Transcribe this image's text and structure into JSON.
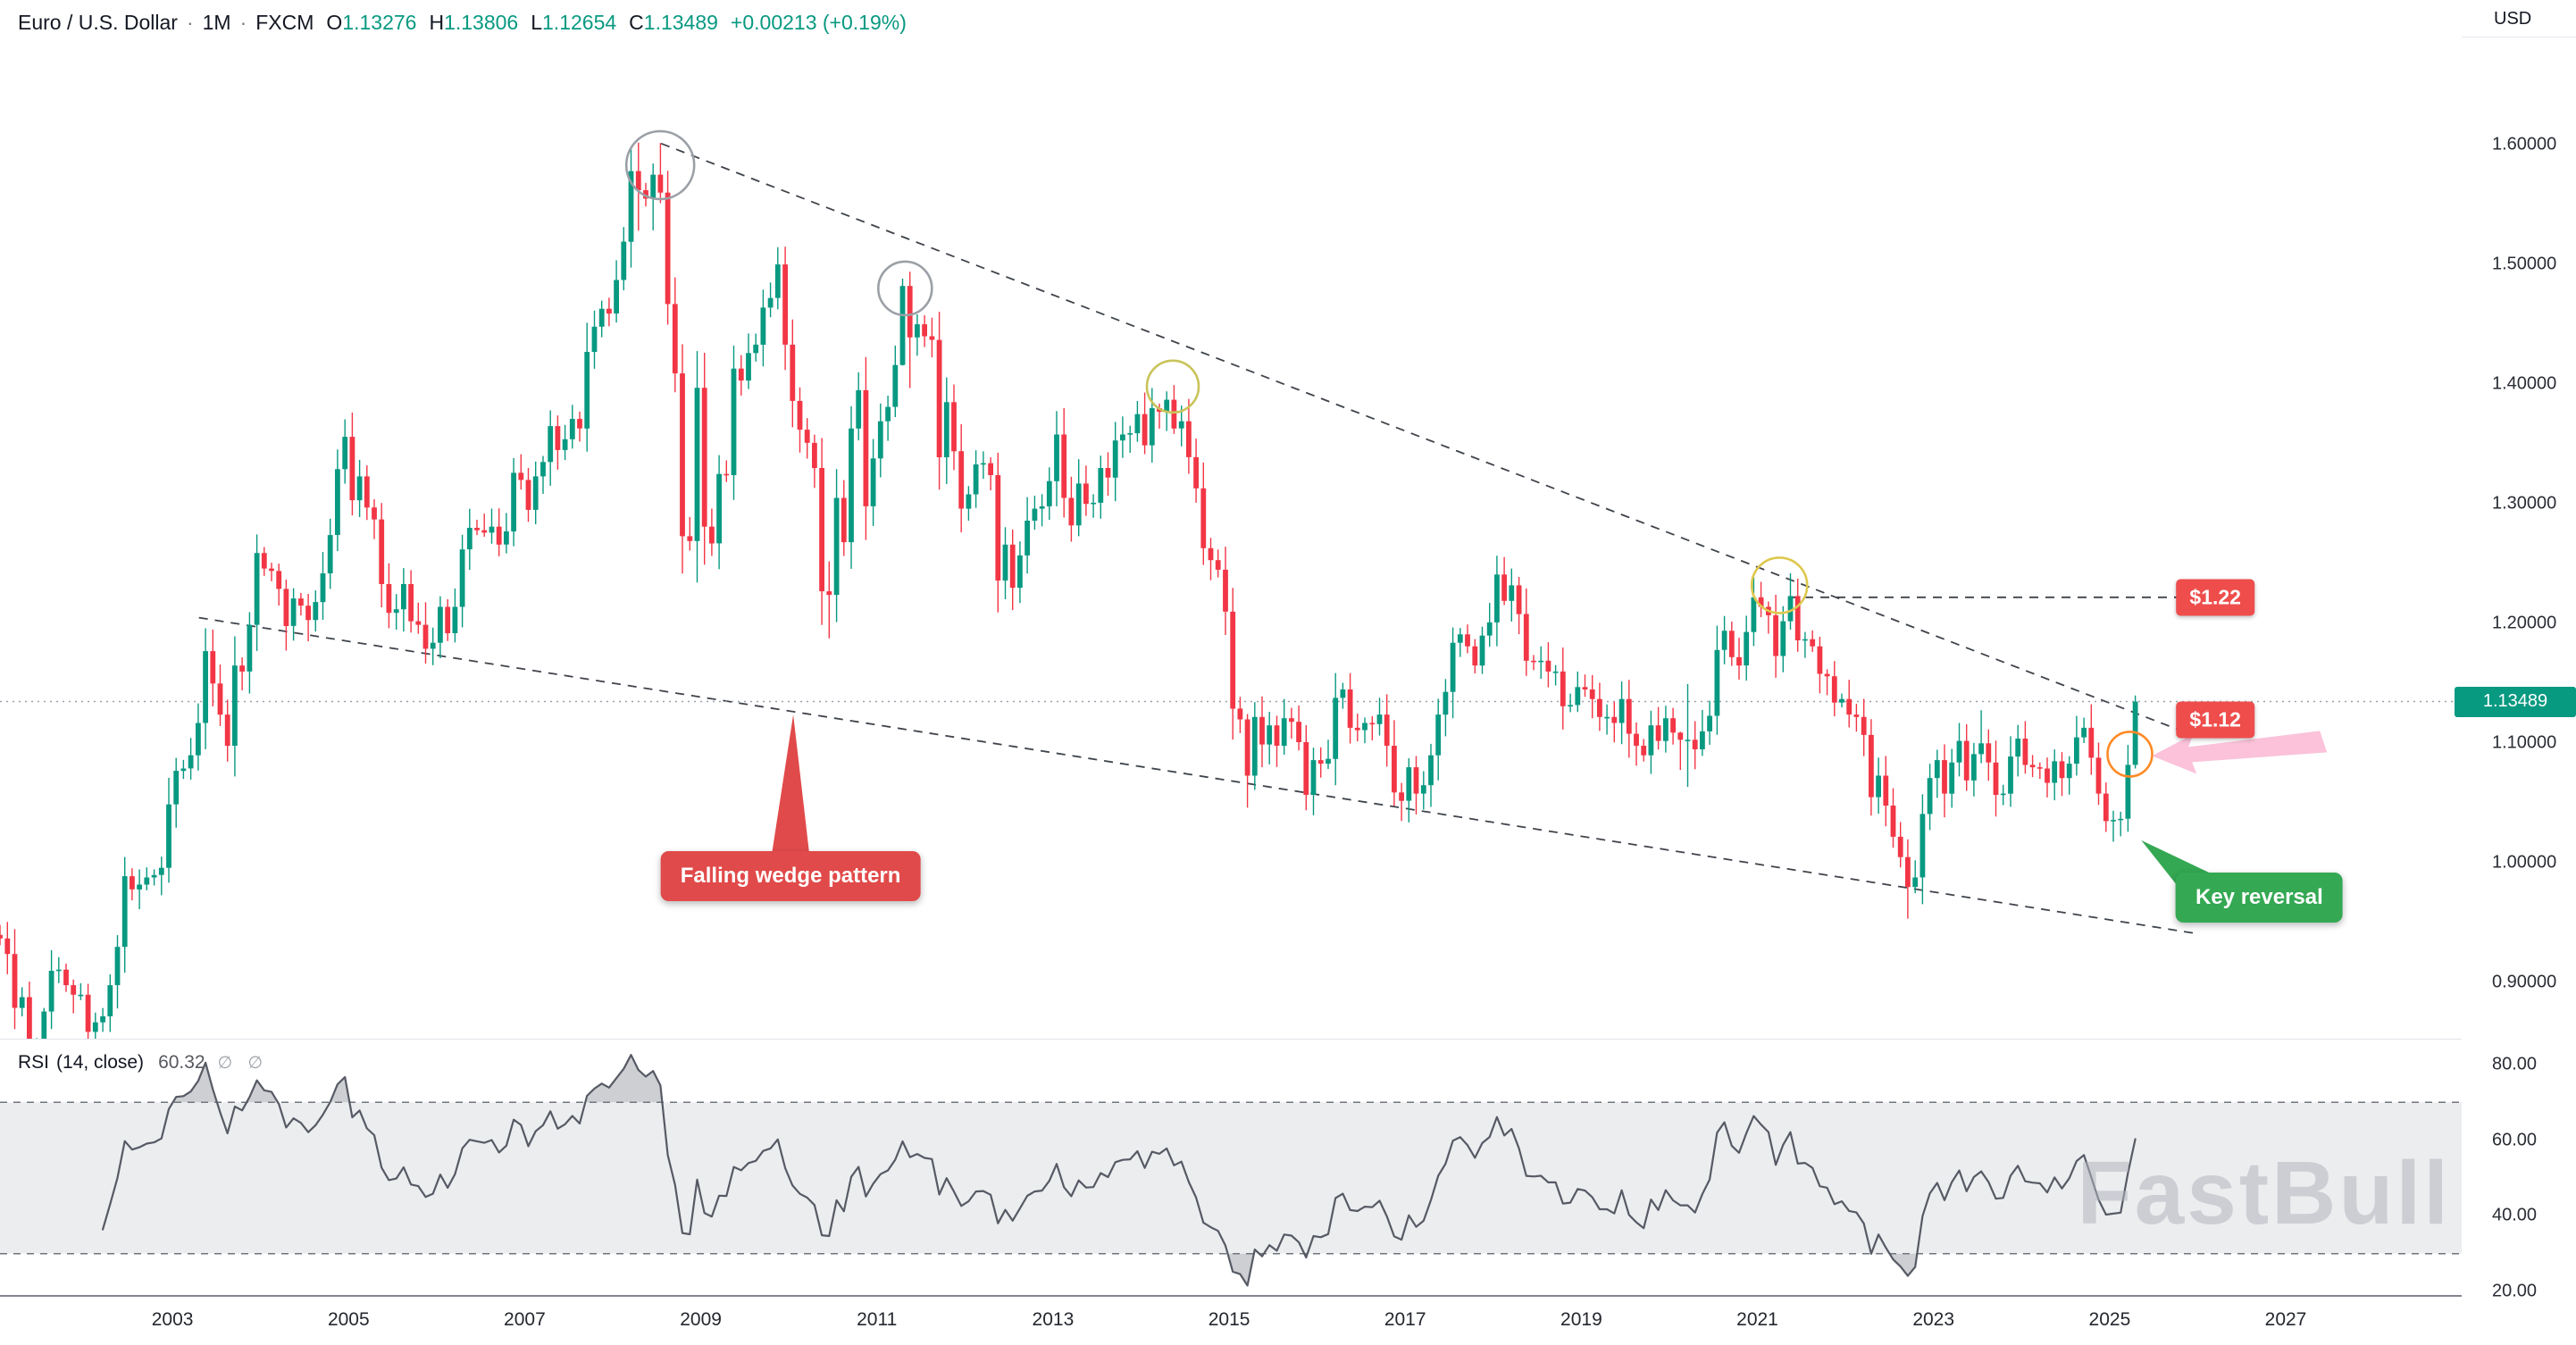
{
  "header": {
    "symbol": "Euro / U.S. Dollar",
    "sep": "·",
    "timeframe": "1M",
    "exchange": "FXCM",
    "ohlc": [
      {
        "label": "O",
        "value": "1.13276"
      },
      {
        "label": "H",
        "value": "1.13806"
      },
      {
        "label": "L",
        "value": "1.12654"
      },
      {
        "label": "C",
        "value": "1.13489"
      }
    ],
    "change": "+0.00213 (+0.19%)"
  },
  "rsi_legend": {
    "name": "RSI",
    "params": "(14, close)",
    "value": "60.32",
    "markers": "∅ ∅"
  },
  "watermark": {
    "text": "FastBull"
  },
  "price_axis": {
    "currency": "USD",
    "ticks": [
      "1.60000",
      "1.50000",
      "1.40000",
      "1.30000",
      "1.20000",
      "1.10000",
      "1.00000",
      "0.90000"
    ],
    "tick_values": [
      1.6,
      1.5,
      1.4,
      1.3,
      1.2,
      1.1,
      1.0,
      0.9
    ],
    "last_price": "1.13489",
    "last_price_value": 1.13489,
    "badge_color": "#089981"
  },
  "rsi_axis": {
    "ticks": [
      "80.00",
      "60.00",
      "40.00",
      "20.00"
    ],
    "tick_values": [
      80,
      60,
      40,
      20
    ]
  },
  "time_axis": {
    "years": [
      2003,
      2005,
      2007,
      2009,
      2011,
      2013,
      2015,
      2017,
      2019,
      2021,
      2023,
      2025,
      2027
    ]
  },
  "annotations": {
    "last_price_line": 1.13489,
    "trendlines": [
      {
        "name": "wedge-upper",
        "from": {
          "year": 2008.55,
          "price": 1.601
        },
        "to": {
          "year": 2025.76,
          "price": 1.112
        }
      },
      {
        "name": "wedge-lower",
        "from": {
          "year": 2003.3,
          "price": 1.205
        },
        "to": {
          "year": 2026.0,
          "price": 0.941
        }
      },
      {
        "name": "target-1.22",
        "from": {
          "year": 2021.35,
          "price": 1.222
        },
        "to": {
          "year": 2026.2,
          "price": 1.222
        }
      }
    ],
    "circles": [
      {
        "year": 2008.54,
        "price": 1.583,
        "r": 38,
        "color": "#9aa0a6"
      },
      {
        "year": 2011.32,
        "price": 1.48,
        "r": 30,
        "color": "#9aa0a6"
      },
      {
        "year": 2014.36,
        "price": 1.398,
        "r": 29,
        "color": "#c9c45a"
      },
      {
        "year": 2021.25,
        "price": 1.232,
        "r": 31,
        "color": "#ddc84e"
      },
      {
        "year": 2025.23,
        "price": 1.091,
        "r": 25,
        "color": "#ff8a25"
      }
    ],
    "price_labels": [
      {
        "text": "$1.22",
        "year": 2026.2,
        "price": 1.222,
        "color": "#ee4d4c"
      },
      {
        "text": "$1.12",
        "year": 2026.2,
        "price": 1.12,
        "color": "#ee4d4c"
      }
    ],
    "callouts": [
      {
        "text": "Falling wedge pattern",
        "color": "#e14a4a",
        "tip": {
          "year": 2010.05,
          "price": 1.124
        },
        "box_center": {
          "year": 2010.02,
          "price": 0.989
        },
        "pointer": "top-center"
      },
      {
        "text": "Key reversal",
        "color": "#34a853",
        "tip": {
          "year": 2025.36,
          "price": 1.019
        },
        "box_center": {
          "year": 2026.7,
          "price": 0.971
        },
        "pointer": "top-left"
      }
    ],
    "highlight_arrow": {
      "color": "rgba(247,143,187,0.55)",
      "tip": {
        "year": 2025.48,
        "price": 1.0895
      }
    }
  },
  "chart_data": [
    {
      "type": "candlestick",
      "title": "Euro / U.S. Dollar, 1M, FXCM",
      "interval": "month",
      "x_start": {
        "year": 2001,
        "month": 1
      },
      "first_open": 0.94,
      "closes": [
        0.937,
        0.924,
        0.879,
        0.888,
        0.846,
        0.847,
        0.876,
        0.91,
        0.911,
        0.898,
        0.89,
        0.89,
        0.859,
        0.867,
        0.872,
        0.898,
        0.93,
        0.989,
        0.978,
        0.982,
        0.988,
        0.99,
        0.996,
        1.049,
        1.077,
        1.079,
        1.09,
        1.117,
        1.177,
        1.15,
        1.124,
        1.098,
        1.165,
        1.16,
        1.199,
        1.259,
        1.246,
        1.244,
        1.229,
        1.198,
        1.221,
        1.215,
        1.203,
        1.218,
        1.242,
        1.274,
        1.329,
        1.356,
        1.303,
        1.323,
        1.297,
        1.287,
        1.233,
        1.209,
        1.212,
        1.233,
        1.202,
        1.199,
        1.179,
        1.184,
        1.214,
        1.192,
        1.214,
        1.262,
        1.28,
        1.278,
        1.276,
        1.281,
        1.266,
        1.277,
        1.326,
        1.32,
        1.295,
        1.323,
        1.335,
        1.365,
        1.345,
        1.354,
        1.371,
        1.363,
        1.427,
        1.448,
        1.463,
        1.459,
        1.487,
        1.519,
        1.578,
        1.562,
        1.555,
        1.575,
        1.56,
        1.467,
        1.409,
        1.273,
        1.269,
        1.397,
        1.281,
        1.267,
        1.325,
        1.324,
        1.413,
        1.403,
        1.426,
        1.433,
        1.464,
        1.472,
        1.5,
        1.433,
        1.386,
        1.362,
        1.351,
        1.33,
        1.227,
        1.224,
        1.305,
        1.268,
        1.363,
        1.395,
        1.298,
        1.338,
        1.369,
        1.381,
        1.416,
        1.482,
        1.439,
        1.45,
        1.44,
        1.437,
        1.339,
        1.385,
        1.344,
        1.296,
        1.308,
        1.333,
        1.334,
        1.324,
        1.236,
        1.266,
        1.23,
        1.257,
        1.286,
        1.296,
        1.298,
        1.319,
        1.358,
        1.305,
        1.282,
        1.317,
        1.3,
        1.301,
        1.33,
        1.322,
        1.353,
        1.358,
        1.359,
        1.375,
        1.349,
        1.38,
        1.377,
        1.387,
        1.363,
        1.369,
        1.339,
        1.313,
        1.263,
        1.253,
        1.245,
        1.21,
        1.129,
        1.12,
        1.073,
        1.122,
        1.099,
        1.115,
        1.098,
        1.121,
        1.118,
        1.101,
        1.057,
        1.086,
        1.083,
        1.087,
        1.138,
        1.145,
        1.113,
        1.111,
        1.117,
        1.116,
        1.124,
        1.098,
        1.059,
        1.052,
        1.08,
        1.058,
        1.065,
        1.09,
        1.124,
        1.143,
        1.184,
        1.191,
        1.181,
        1.165,
        1.19,
        1.201,
        1.241,
        1.219,
        1.232,
        1.208,
        1.169,
        1.168,
        1.169,
        1.16,
        1.16,
        1.131,
        1.132,
        1.147,
        1.145,
        1.137,
        1.122,
        1.122,
        1.117,
        1.137,
        1.108,
        1.098,
        1.09,
        1.115,
        1.102,
        1.121,
        1.109,
        1.103,
        1.103,
        1.095,
        1.11,
        1.123,
        1.178,
        1.194,
        1.172,
        1.165,
        1.193,
        1.222,
        1.214,
        1.207,
        1.173,
        1.202,
        1.223,
        1.186,
        1.187,
        1.181,
        1.158,
        1.156,
        1.134,
        1.137,
        1.124,
        1.122,
        1.107,
        1.055,
        1.073,
        1.048,
        1.022,
        1.005,
        0.98,
        0.988,
        1.041,
        1.071,
        1.086,
        1.058,
        1.084,
        1.102,
        1.069,
        1.091,
        1.1,
        1.084,
        1.057,
        1.058,
        1.089,
        1.104,
        1.082,
        1.08,
        1.079,
        1.067,
        1.085,
        1.071,
        1.083,
        1.105,
        1.113,
        1.088,
        1.058,
        1.035,
        1.036,
        1.037,
        1.082,
        1.13489
      ],
      "wick_overrides": {
        "6": [
          0.879,
          0.8352
        ],
        "87": [
          1.6018,
          1.5283
        ],
        "89": [
          1.5843,
          1.5285
        ],
        "90": [
          1.6014,
          1.5512
        ],
        "106": [
          1.5144,
          1.4625
        ],
        "113": [
          1.252,
          1.1877
        ],
        "123": [
          1.4882,
          1.4155
        ],
        "124": [
          1.494,
          1.3968
        ],
        "160": [
          1.3993,
          1.3585
        ],
        "170": [
          1.1245,
          1.0462
        ],
        "191": [
          1.067,
          1.0352
        ],
        "192": [
          1.0875,
          1.034
        ],
        "205": [
          1.2556,
          1.2155
        ],
        "229": [
          1.1096,
          1.0778
        ],
        "230": [
          1.1495,
          1.0636
        ],
        "240": [
          1.2349,
          1.2054
        ],
        "260": [
          1.0198,
          0.9536
        ],
        "270": [
          1.1276,
          1.0834
        ],
        "284": [
          1.1214,
          1.1002
        ],
        "288": [
          1.0437,
          1.0178
        ],
        "291": [
          1.14,
          1.079
        ]
      },
      "up_color": "#089981",
      "down_color": "#f23645",
      "grid": false,
      "xlim": [
        2001.0,
        2029.0
      ],
      "ylim": [
        0.853,
        1.721
      ],
      "x_tick_years": [
        2003,
        2005,
        2007,
        2009,
        2011,
        2013,
        2015,
        2017,
        2019,
        2021,
        2023,
        2025,
        2027
      ],
      "y_ticks": [
        1.6,
        1.5,
        1.4,
        1.3,
        1.2,
        1.1,
        1.0,
        0.9
      ],
      "last_price": 1.13489
    },
    {
      "type": "line",
      "name": "RSI (14, close)",
      "derived_from": "closes",
      "period": 14,
      "range": [
        20,
        80
      ],
      "bands": [
        70,
        30
      ],
      "last_value": 60.32,
      "line_color": "#565a64",
      "band_fill": "rgba(150,155,165,0.18)",
      "band_line_color": "#70747e",
      "overshoot_fill": "rgba(125,130,140,0.38)"
    }
  ]
}
